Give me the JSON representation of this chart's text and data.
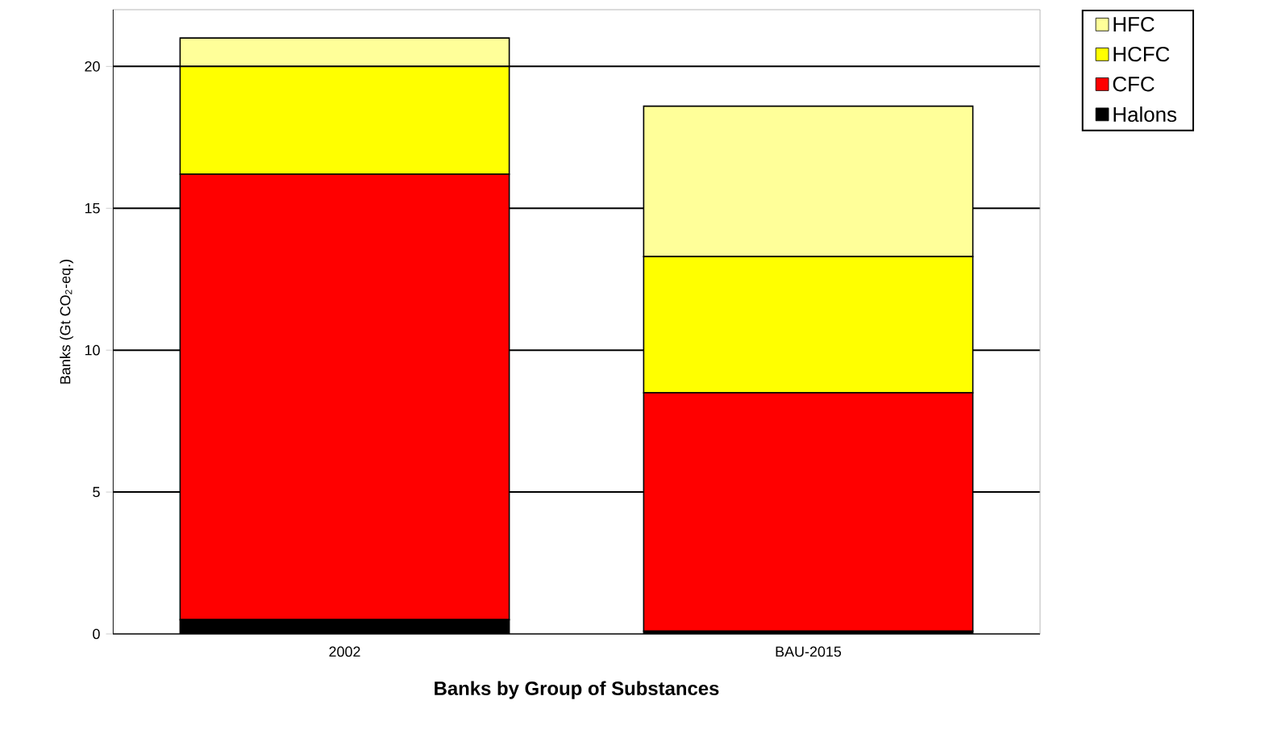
{
  "chart_data": {
    "type": "bar",
    "stacked": true,
    "xlabel": "Banks by Group of Substances",
    "ylabel": "Banks (Gt CO$_{2}$-eq.)",
    "categories": [
      "2002",
      "BAU-2015"
    ],
    "series": [
      {
        "name": "Halons",
        "color": "#000000",
        "values": [
          0.5,
          0.1
        ]
      },
      {
        "name": "CFC",
        "color": "#ff0000",
        "values": [
          15.7,
          8.4
        ]
      },
      {
        "name": "HCFC",
        "color": "#ffff00",
        "values": [
          3.8,
          4.8
        ]
      },
      {
        "name": "HFC",
        "color": "#ffff99",
        "values": [
          1.0,
          5.3
        ]
      }
    ],
    "ylim": [
      0,
      22
    ],
    "yticks": [
      0,
      5,
      10,
      15,
      20
    ],
    "grid": "y",
    "legend": "top right"
  }
}
